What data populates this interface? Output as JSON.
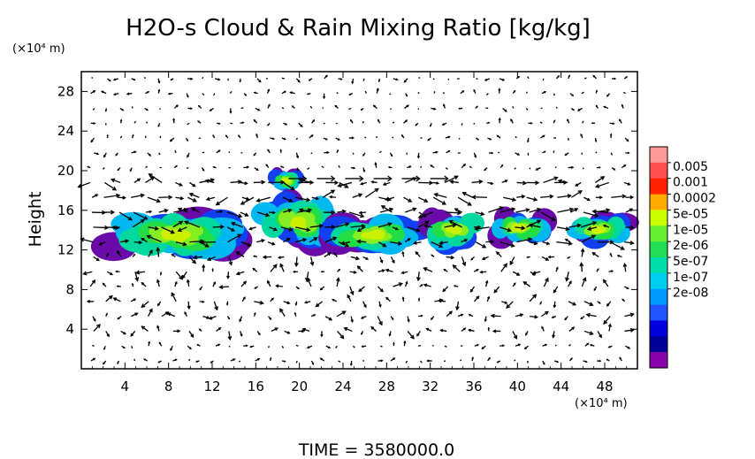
{
  "chart_data": {
    "type": "heatmap",
    "title": "H2O-s Cloud & Rain Mixing Ratio [kg/kg]",
    "ylabel": "Height",
    "y_unit": "(×10⁴ m)",
    "x_unit": "(×10⁴ m)",
    "footer": "TIME = 3580000.0",
    "xlim": [
      0,
      51
    ],
    "ylim": [
      0,
      30
    ],
    "x_ticks": [
      "4",
      "8",
      "12",
      "16",
      "20",
      "24",
      "28",
      "32",
      "36",
      "40",
      "44",
      "48"
    ],
    "y_ticks": [
      "4",
      "8",
      "12",
      "16",
      "20",
      "24",
      "28"
    ],
    "x_tick_values": [
      4,
      8,
      12,
      16,
      20,
      24,
      28,
      32,
      36,
      40,
      44,
      48
    ],
    "y_tick_values": [
      4,
      8,
      12,
      16,
      20,
      24,
      28
    ],
    "colorbar": {
      "labels": [
        "0.005",
        "0.001",
        "0.0002",
        "5e-05",
        "1e-05",
        "2e-06",
        "5e-07",
        "1e-07",
        "2e-08"
      ],
      "colors": [
        "#ff9a9a",
        "#ff5050",
        "#ff2200",
        "#ffaa00",
        "#ccff00",
        "#66ee33",
        "#22dd55",
        "#00ddaa",
        "#00ccee",
        "#0099ff",
        "#2255ff",
        "#0000dd",
        "#000099",
        "#8800aa"
      ]
    },
    "cloud_blobs": [
      {
        "x": [
          2.0,
          15.0
        ],
        "y": [
          11.0,
          16.0
        ]
      },
      {
        "x": [
          15.5,
          24.0
        ],
        "y": [
          12.0,
          17.5
        ]
      },
      {
        "x": [
          17.5,
          20.0
        ],
        "y": [
          18.0,
          20.0
        ]
      },
      {
        "x": [
          22.0,
          31.5
        ],
        "y": [
          11.5,
          15.5
        ]
      },
      {
        "x": [
          31.0,
          37.5
        ],
        "y": [
          12.0,
          16.0
        ]
      },
      {
        "x": [
          37.5,
          43.0
        ],
        "y": [
          12.5,
          16.0
        ]
      },
      {
        "x": [
          44.5,
          50.5
        ],
        "y": [
          12.5,
          15.5
        ]
      }
    ]
  }
}
